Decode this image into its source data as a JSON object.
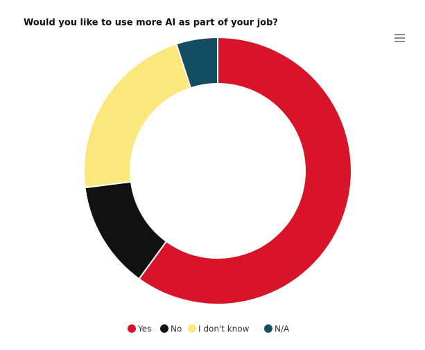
{
  "chart_data": {
    "type": "pie",
    "title": "Would you like to use more AI as part of your job?",
    "categories": [
      "Yes",
      "No",
      "I don't know",
      "N/A"
    ],
    "values": [
      60,
      13,
      22,
      5
    ],
    "colors": [
      "#d7142a",
      "#111111",
      "#fce77c",
      "#124d62"
    ],
    "donut": true
  }
}
